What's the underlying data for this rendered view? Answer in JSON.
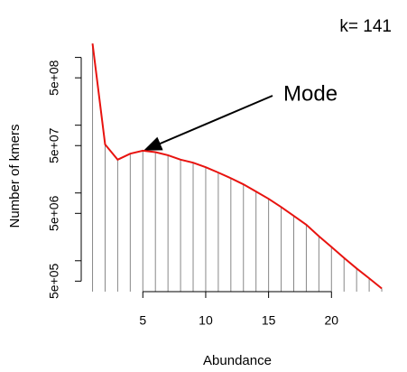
{
  "chart_data": {
    "type": "line",
    "annotation": "k= 141",
    "mode_label": "Mode",
    "x_label": "Abundance",
    "y_label": "Number of kmers",
    "x": [
      1,
      2,
      3,
      4,
      5,
      6,
      7,
      8,
      9,
      10,
      11,
      12,
      13,
      14,
      15,
      16,
      17,
      18,
      19,
      20,
      21,
      22,
      23,
      24
    ],
    "series": [
      {
        "color": "#e8130f",
        "values": [
          1600000000,
          52000000,
          31000000,
          38000000,
          42000000,
          40000000,
          36000000,
          31000000,
          28000000,
          24000000,
          20000000,
          16500000,
          13400000,
          10500000,
          8200000,
          6200000,
          4600000,
          3400000,
          2300000,
          1600000,
          1100000,
          770000,
          550000,
          390000
        ]
      }
    ],
    "spike_color": "#888888",
    "xlim": [
      0.1,
      24.5
    ],
    "xticks": [
      5,
      10,
      15,
      20
    ],
    "ylim": [
      350000,
      2000000000
    ],
    "log_y": true,
    "yticks": [
      {
        "value": 500000,
        "label": "5e+05"
      },
      {
        "value": 5000000,
        "label": "5e+06"
      },
      {
        "value": 50000000,
        "label": "5e+07"
      },
      {
        "value": 500000000,
        "label": "5e+08"
      }
    ],
    "yminor_ticks": [
      1000000,
      10000000,
      100000000,
      1000000000
    ]
  }
}
